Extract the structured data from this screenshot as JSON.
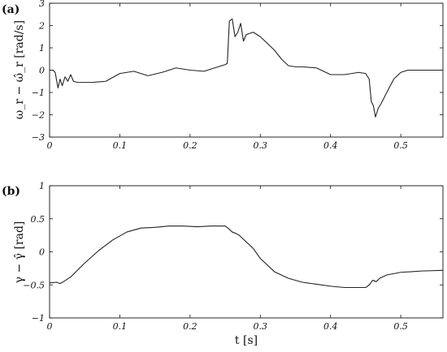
{
  "chart_data": [
    {
      "panel": "(a)",
      "type": "line",
      "ylabel": "ω_r − ω̂_r [rad/s]",
      "xlim": [
        0,
        0.56
      ],
      "ylim": [
        -3,
        3
      ],
      "xticks": [
        0,
        0.1,
        0.2,
        0.3,
        0.4,
        0.5
      ],
      "xtick_labels": [
        "0",
        "0.1",
        "0.2",
        "0.3",
        "0.4",
        "0.5"
      ],
      "yticks": [
        -3,
        -2,
        -1,
        0,
        1,
        2,
        3
      ],
      "ytick_labels": [
        "−3",
        "−2",
        "−1",
        "0",
        "1",
        "2",
        "3"
      ],
      "series": [
        {
          "x": [
            0,
            0.005,
            0.008,
            0.012,
            0.015,
            0.018,
            0.022,
            0.026,
            0.03,
            0.034,
            0.04,
            0.06,
            0.08,
            0.1,
            0.12,
            0.14,
            0.16,
            0.18,
            0.2,
            0.22,
            0.24,
            0.25,
            0.253,
            0.256,
            0.26,
            0.264,
            0.268,
            0.272,
            0.276,
            0.28,
            0.29,
            0.3,
            0.31,
            0.32,
            0.33,
            0.34,
            0.35,
            0.36,
            0.38,
            0.4,
            0.42,
            0.44,
            0.45,
            0.455,
            0.458,
            0.461,
            0.464,
            0.468,
            0.472,
            0.48,
            0.49,
            0.5,
            0.51,
            0.53,
            0.56
          ],
          "y": [
            0.0,
            0.0,
            -0.1,
            -0.8,
            -0.4,
            -0.7,
            -0.3,
            -0.5,
            -0.2,
            -0.5,
            -0.55,
            -0.55,
            -0.5,
            -0.15,
            -0.05,
            -0.25,
            -0.1,
            0.1,
            0.0,
            -0.05,
            0.15,
            0.25,
            0.3,
            2.2,
            2.3,
            1.5,
            1.7,
            2.1,
            1.3,
            1.6,
            1.7,
            1.5,
            1.2,
            0.9,
            0.5,
            0.2,
            0.15,
            0.15,
            0.1,
            -0.2,
            -0.2,
            -0.1,
            -0.15,
            -0.4,
            -1.4,
            -1.6,
            -2.1,
            -1.7,
            -1.5,
            -1.0,
            -0.4,
            -0.1,
            0.0,
            0.0,
            0.0
          ]
        }
      ]
    },
    {
      "panel": "(b)",
      "type": "line",
      "xlabel": "t [s]",
      "ylabel": "γ − γ̂ [rad]",
      "xlim": [
        0,
        0.56
      ],
      "ylim": [
        -1,
        1
      ],
      "xticks": [
        0,
        0.1,
        0.2,
        0.3,
        0.4,
        0.5
      ],
      "xtick_labels": [
        "0",
        "0.1",
        "0.2",
        "0.3",
        "0.4",
        "0.5"
      ],
      "yticks": [
        -1,
        -0.5,
        0,
        0.5,
        1
      ],
      "ytick_labels": [
        "−1",
        "−0.5",
        "0",
        "0.5",
        "1"
      ],
      "series": [
        {
          "x": [
            0,
            0.01,
            0.015,
            0.02,
            0.03,
            0.05,
            0.07,
            0.09,
            0.11,
            0.13,
            0.15,
            0.17,
            0.19,
            0.21,
            0.23,
            0.25,
            0.255,
            0.26,
            0.265,
            0.27,
            0.28,
            0.29,
            0.3,
            0.32,
            0.34,
            0.36,
            0.38,
            0.4,
            0.42,
            0.45,
            0.455,
            0.46,
            0.465,
            0.47,
            0.48,
            0.5,
            0.53,
            0.56
          ],
          "y": [
            -0.47,
            -0.46,
            -0.48,
            -0.45,
            -0.38,
            -0.17,
            0.02,
            0.18,
            0.3,
            0.36,
            0.37,
            0.39,
            0.39,
            0.38,
            0.39,
            0.39,
            0.35,
            0.3,
            0.28,
            0.25,
            0.15,
            0.05,
            -0.1,
            -0.3,
            -0.4,
            -0.46,
            -0.49,
            -0.52,
            -0.54,
            -0.54,
            -0.5,
            -0.43,
            -0.45,
            -0.4,
            -0.35,
            -0.31,
            -0.29,
            -0.28
          ]
        }
      ]
    }
  ]
}
